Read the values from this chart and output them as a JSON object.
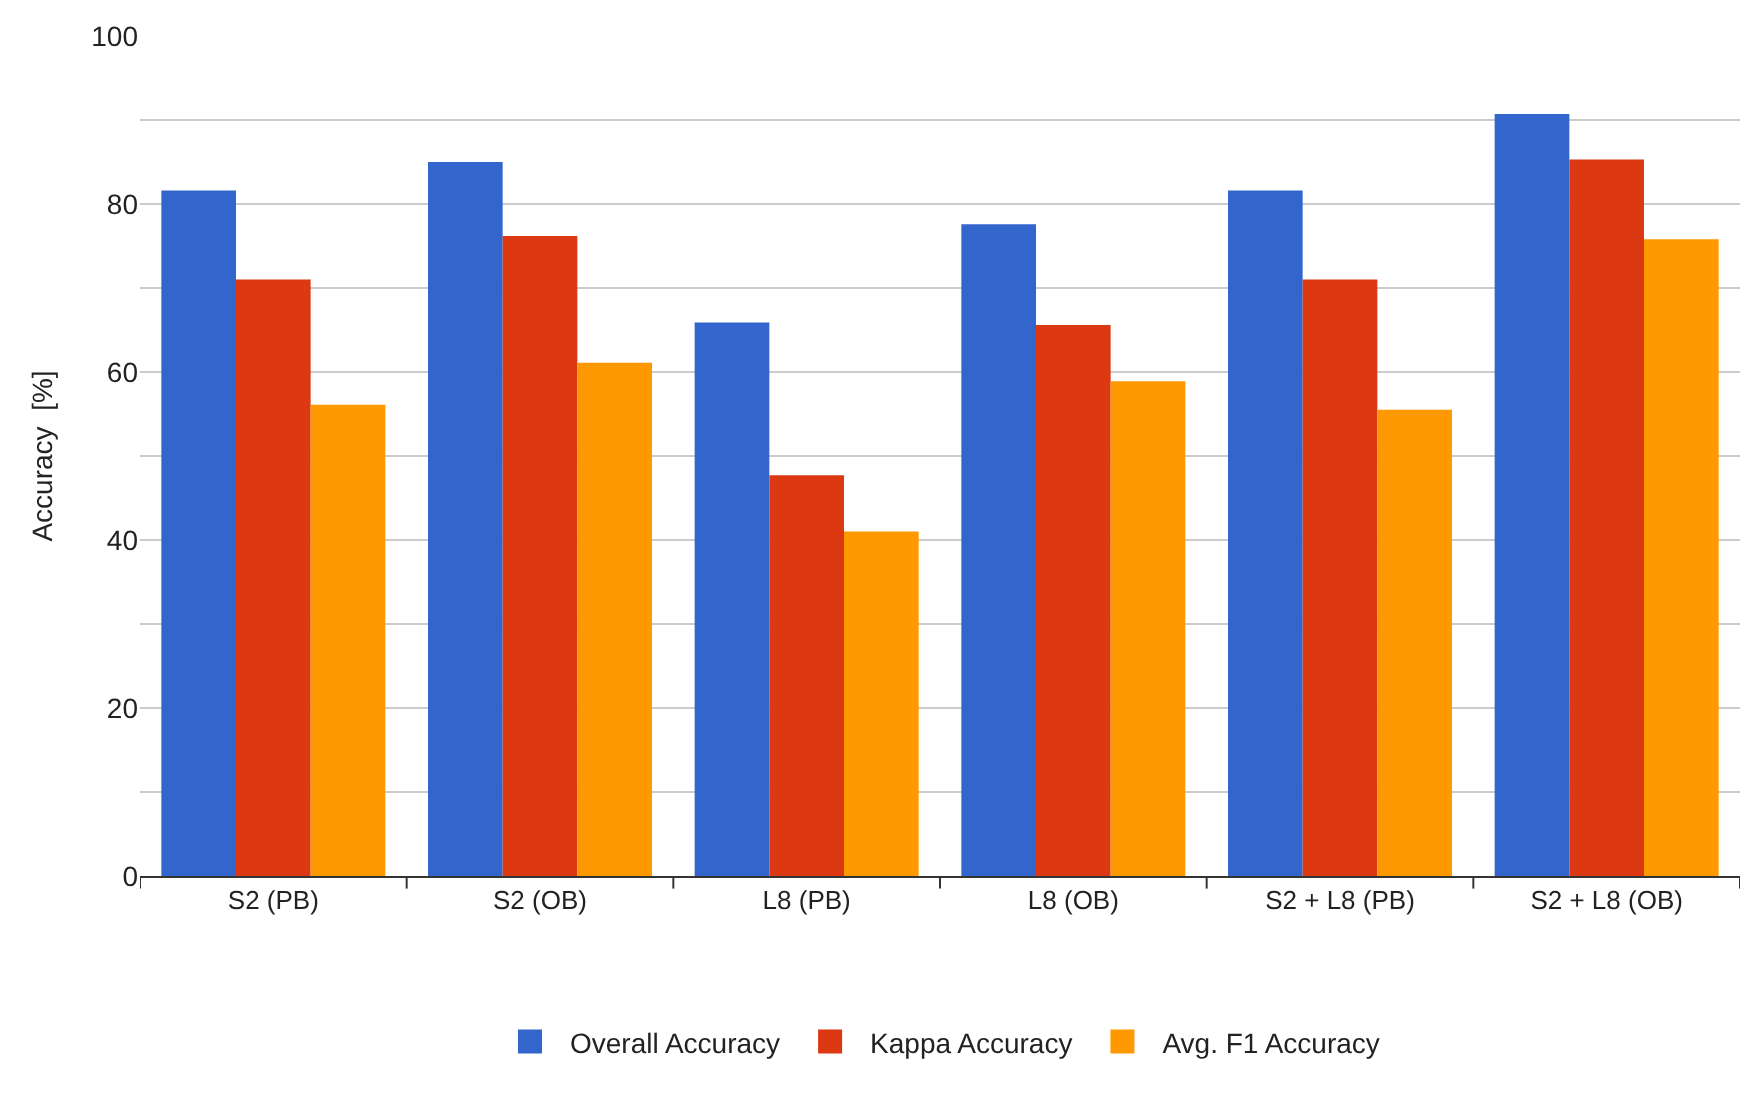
{
  "chart_data": {
    "type": "bar",
    "ylabel": "Accuracy  [%]",
    "categories": [
      "S2 (PB)",
      "S2 (OB)",
      "L8 (PB)",
      "L8 (OB)",
      "S2 + L8 (PB)",
      "S2 + L8 (OB)"
    ],
    "series": [
      {
        "name": "Overall Accuracy",
        "color": "#3366cc",
        "values": [
          81.6,
          85.0,
          65.9,
          77.6,
          81.6,
          90.7
        ]
      },
      {
        "name": "Kappa Accuracy",
        "color": "#dc3912",
        "values": [
          71.0,
          76.2,
          47.7,
          65.6,
          71.0,
          85.3
        ]
      },
      {
        "name": "Avg. F1 Accuracy",
        "color": "#ff9900",
        "values": [
          56.1,
          61.1,
          41.0,
          58.9,
          55.5,
          75.8
        ]
      }
    ],
    "ylim": [
      0,
      100
    ],
    "yticks": [
      0,
      {
        "value": 10,
        "label": null
      },
      20,
      {
        "value": 30,
        "label": null
      },
      40,
      {
        "value": 50,
        "label": null
      },
      60,
      {
        "value": 70,
        "label": null
      },
      80,
      {
        "value": 90,
        "label": null
      },
      100
    ],
    "grid": "y",
    "legend": "bottom"
  }
}
